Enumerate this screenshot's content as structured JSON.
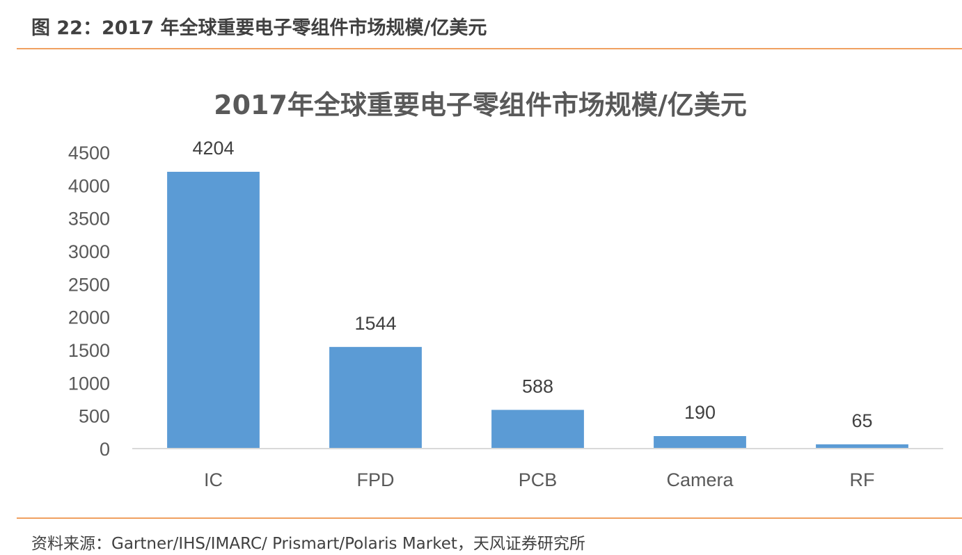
{
  "header": {
    "caption": "图 22：2017 年全球重要电子零组件市场规模/亿美元"
  },
  "footer": {
    "source": "资料来源：Gartner/IHS/IMARC/ Prismart/Polaris Market，天风证券研究所"
  },
  "colors": {
    "bar": "#5b9bd5",
    "rule": "#f0a060",
    "axis": "#d9d9d9"
  },
  "chart_data": {
    "type": "bar",
    "title": "2017年全球重要电子零组件市场规模/亿美元",
    "xlabel": "",
    "ylabel": "",
    "categories": [
      "IC",
      "FPD",
      "PCB",
      "Camera",
      "RF"
    ],
    "values": [
      4204,
      1544,
      588,
      190,
      65
    ],
    "ylim": [
      0,
      4500
    ],
    "yticks": [
      0,
      500,
      1000,
      1500,
      2000,
      2500,
      3000,
      3500,
      4000,
      4500
    ],
    "grid": false,
    "legend": "none",
    "data_labels": true
  }
}
